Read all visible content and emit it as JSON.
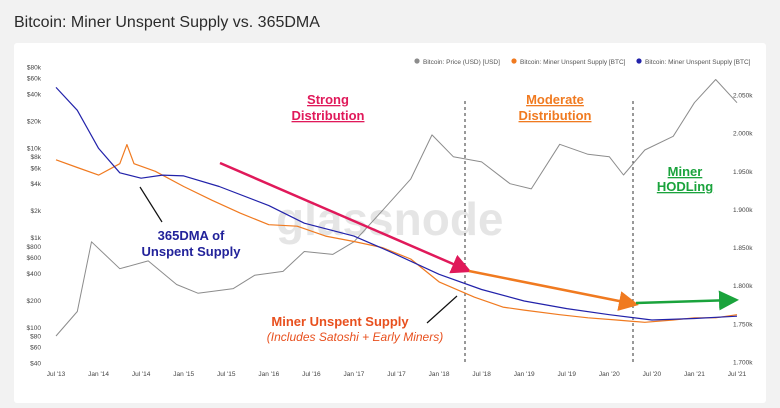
{
  "page": {
    "title": "Bitcoin: Miner Unspent Supply vs. 365DMA"
  },
  "chart_data": {
    "type": "line",
    "legend": {
      "position": "top-right",
      "entries": [
        {
          "label": "Bitcoin: Price (USD) [USD]",
          "color": "#8c8c8c"
        },
        {
          "label": "Bitcoin: Miner Unspent Supply [BTC]",
          "color": "#f07a20"
        },
        {
          "label": "Bitcoin: Miner Unspent Supply [BTC]",
          "color": "#2222aa"
        }
      ]
    },
    "x_ticks": [
      "Jul '13",
      "Jan '14",
      "Jul '14",
      "Jan '15",
      "Jul '15",
      "Jan '16",
      "Jul '16",
      "Jan '17",
      "Jul '17",
      "Jan '18",
      "Jul '18",
      "Jan '19",
      "Jul '19",
      "Jan '20",
      "Jul '20",
      "Jan '21",
      "Jul '21"
    ],
    "y_left_scale": "log",
    "y_left_ticks": [
      "$80k",
      "$60k",
      "$40k",
      "$20k",
      "$10k",
      "$8k",
      "$6k",
      "$4k",
      "$2k",
      "$1k",
      "$800",
      "$600",
      "$400",
      "$200",
      "$100",
      "$80",
      "$60",
      "$40"
    ],
    "y_right_ticks": [
      "2.050k",
      "2.000k",
      "1.950k",
      "1.900k",
      "1.850k",
      "1.800k",
      "1.750k",
      "1.700k"
    ],
    "watermark": "glassnode",
    "annotations": {
      "strong": [
        "Strong",
        "Distribution"
      ],
      "moderate": [
        "Moderate",
        "Distribution"
      ],
      "hodl": [
        "Miner",
        "HODLing"
      ],
      "dma": [
        "365DMA of",
        "Unspent Supply"
      ],
      "unspent": "Miner Unspent Supply",
      "unspent_sub": "(Includes Satoshi + Early Miners)"
    },
    "colors": {
      "price": "#8c8c8c",
      "unspent": "#f07a20",
      "dma": "#2222aa",
      "strong": "#e0195a",
      "moderate": "#f07a20",
      "hodl": "#1aa33c"
    },
    "series": [
      {
        "name": "Bitcoin: Price (USD) [USD]",
        "x": [
          "2013-07",
          "2013-10",
          "2013-12",
          "2014-04",
          "2014-08",
          "2014-12",
          "2015-03",
          "2015-08",
          "2015-11",
          "2016-03",
          "2016-06",
          "2016-10",
          "2017-01",
          "2017-05",
          "2017-09",
          "2017-12",
          "2018-03",
          "2018-07",
          "2018-11",
          "2019-02",
          "2019-06",
          "2019-10",
          "2020-01",
          "2020-03",
          "2020-06",
          "2020-10",
          "2021-01",
          "2021-04",
          "2021-07"
        ],
        "y": [
          80,
          150,
          900,
          450,
          550,
          300,
          240,
          270,
          380,
          420,
          700,
          650,
          900,
          2000,
          4500,
          14000,
          8000,
          7000,
          4000,
          3500,
          11000,
          8500,
          8000,
          5000,
          9500,
          13500,
          32000,
          58000,
          32000
        ]
      },
      {
        "name": "Bitcoin: Miner Unspent Supply [BTC]",
        "x": [
          "2013-07",
          "2013-10",
          "2014-01",
          "2014-04",
          "2014-05",
          "2014-06",
          "2014-09",
          "2015-01",
          "2015-05",
          "2015-09",
          "2016-01",
          "2016-05",
          "2016-09",
          "2017-01",
          "2017-05",
          "2017-09",
          "2018-01",
          "2018-06",
          "2018-10",
          "2019-01",
          "2019-06",
          "2019-10",
          "2020-02",
          "2020-06",
          "2020-10",
          "2021-01",
          "2021-04",
          "2021-07"
        ],
        "y": [
          1965,
          1955,
          1945,
          1960,
          1985,
          1960,
          1950,
          1930,
          1912,
          1895,
          1880,
          1878,
          1865,
          1858,
          1850,
          1835,
          1805,
          1785,
          1772,
          1768,
          1762,
          1758,
          1755,
          1752,
          1755,
          1758,
          1758,
          1762
        ]
      },
      {
        "name": "Bitcoin: Miner Unspent Supply [BTC]",
        "x": [
          "2013-07",
          "2013-10",
          "2014-01",
          "2014-04",
          "2014-07",
          "2014-10",
          "2015-01",
          "2015-06",
          "2016-01",
          "2016-06",
          "2017-01",
          "2017-06",
          "2018-01",
          "2018-07",
          "2019-01",
          "2019-07",
          "2020-01",
          "2020-07",
          "2021-01",
          "2021-07"
        ],
        "y": [
          2060,
          2030,
          1980,
          1948,
          1941,
          1945,
          1944,
          1930,
          1905,
          1882,
          1865,
          1845,
          1815,
          1795,
          1780,
          1770,
          1762,
          1755,
          1757,
          1760
        ]
      }
    ]
  }
}
